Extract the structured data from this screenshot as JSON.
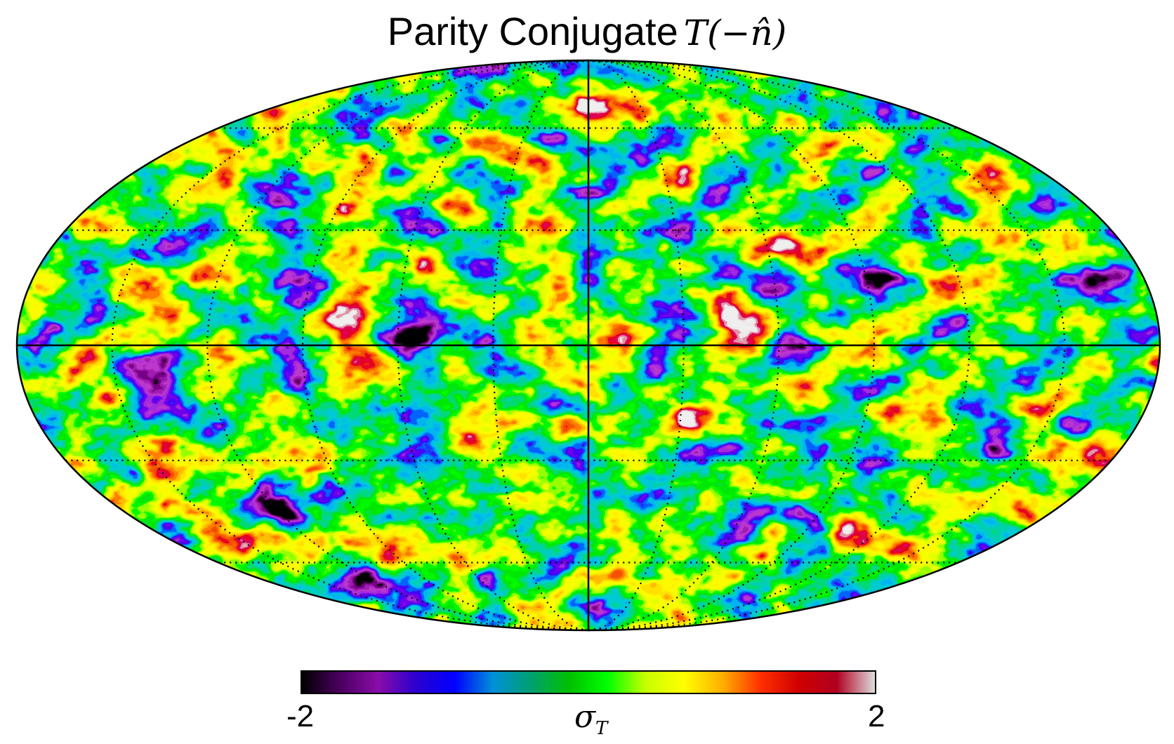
{
  "title": {
    "text": "Parity Conjugate",
    "math": "T(−n̂)"
  },
  "map": {
    "projection": "mollweide",
    "graticule": "dotted",
    "meridian_axis": "solid",
    "equator": "solid"
  },
  "colorbar": {
    "min_label": "-2",
    "max_label": "2",
    "label_symbol": "σ",
    "label_sub": "T",
    "stops": [
      "#000000",
      "#4a0060",
      "#8a0ca8",
      "#2a00d0",
      "#0000ff",
      "#0090d8",
      "#00a070",
      "#00c000",
      "#00ff00",
      "#c8ff00",
      "#ffff00",
      "#ffb000",
      "#ff3000",
      "#d00000",
      "#b00020",
      "#dddddd"
    ]
  }
}
